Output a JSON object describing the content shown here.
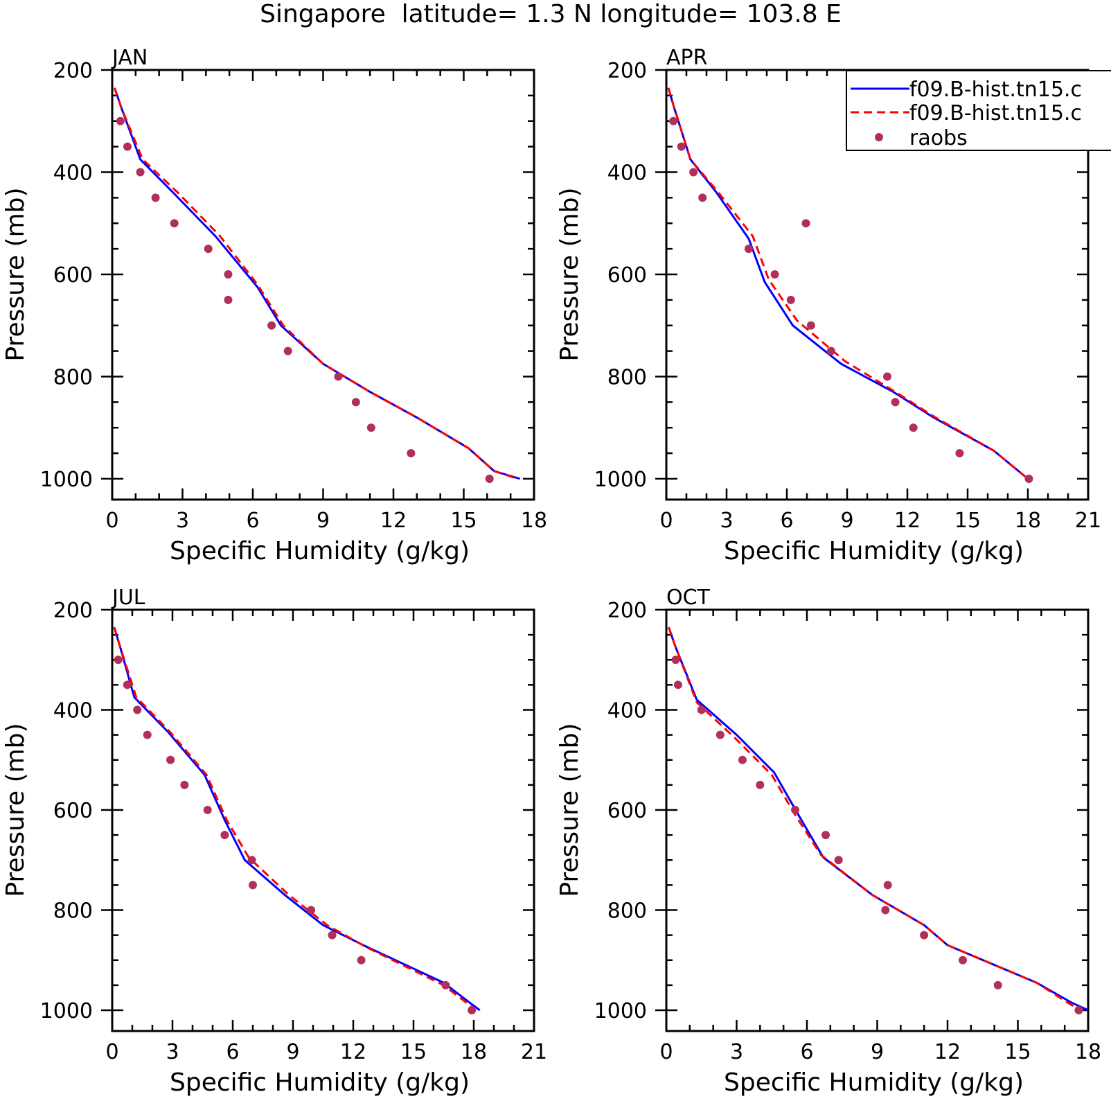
{
  "figure": {
    "title": "Singapore  latitude= 1.3 N longitude= 103.8 E"
  },
  "legend": {
    "entries": [
      {
        "label": "f09.B-hist.tn15.c",
        "style": "solid",
        "color": "#0000ff"
      },
      {
        "label": "f09.B-hist.tn15.c",
        "style": "dashed",
        "color": "#ff0000"
      },
      {
        "label": "raobs",
        "style": "dot",
        "color": "#b0305a"
      }
    ]
  },
  "colors": {
    "model_solid": "#0000ff",
    "model_dashed": "#ff0000",
    "raobs": "#b0305a"
  },
  "chart_data": [
    {
      "type": "line",
      "panel_label": "JAN",
      "xlabel": "Specific Humidity (g/kg)",
      "ylabel": "Pressure (mb)",
      "xlim": [
        0,
        18
      ],
      "ylim": [
        1000,
        200
      ],
      "x_ticks": [
        0,
        3,
        6,
        9,
        12,
        15,
        18
      ],
      "y_ticks": [
        200,
        400,
        600,
        800,
        1000
      ],
      "series": [
        {
          "style": "solid",
          "points": [
            [
              0.1,
              235
            ],
            [
              0.4,
              275
            ],
            [
              1.2,
              375
            ],
            [
              2.6,
              440
            ],
            [
              4.4,
              525
            ],
            [
              6.2,
              625
            ],
            [
              7.2,
              700
            ],
            [
              9.0,
              775
            ],
            [
              11.0,
              830
            ],
            [
              13.0,
              880
            ],
            [
              15.2,
              940
            ],
            [
              16.3,
              985
            ],
            [
              17.4,
              1000
            ]
          ]
        },
        {
          "style": "dashed",
          "points": [
            [
              0.1,
              235
            ],
            [
              0.4,
              275
            ],
            [
              1.3,
              375
            ],
            [
              2.8,
              440
            ],
            [
              4.6,
              525
            ],
            [
              6.2,
              620
            ],
            [
              7.3,
              700
            ],
            [
              9.0,
              775
            ],
            [
              11.0,
              830
            ],
            [
              13.0,
              880
            ],
            [
              15.2,
              940
            ],
            [
              16.3,
              985
            ],
            [
              17.3,
              1000
            ]
          ]
        },
        {
          "style": "dot",
          "points": [
            [
              0.35,
              300
            ],
            [
              0.65,
              350
            ],
            [
              1.2,
              400
            ],
            [
              1.85,
              450
            ],
            [
              2.65,
              500
            ],
            [
              4.1,
              550
            ],
            [
              4.95,
              600
            ],
            [
              4.95,
              650
            ],
            [
              6.8,
              700
            ],
            [
              7.5,
              750
            ],
            [
              9.65,
              800
            ],
            [
              10.4,
              850
            ],
            [
              11.05,
              900
            ],
            [
              12.75,
              950
            ],
            [
              16.1,
              1000
            ]
          ]
        }
      ]
    },
    {
      "type": "line",
      "panel_label": "APR",
      "xlabel": "Specific Humidity (g/kg)",
      "ylabel": "Pressure (mb)",
      "xlim": [
        0,
        21
      ],
      "ylim": [
        1000,
        200
      ],
      "x_ticks": [
        0,
        3,
        6,
        9,
        12,
        15,
        18,
        21
      ],
      "y_ticks": [
        200,
        400,
        600,
        800,
        1000
      ],
      "series": [
        {
          "style": "solid",
          "points": [
            [
              0.1,
              235
            ],
            [
              0.4,
              275
            ],
            [
              1.2,
              375
            ],
            [
              2.5,
              440
            ],
            [
              4.1,
              530
            ],
            [
              4.9,
              615
            ],
            [
              6.3,
              700
            ],
            [
              8.7,
              775
            ],
            [
              11.3,
              830
            ],
            [
              13.3,
              880
            ],
            [
              16.3,
              945
            ],
            [
              18.0,
              1000
            ]
          ]
        },
        {
          "style": "dashed",
          "points": [
            [
              0.1,
              235
            ],
            [
              0.4,
              275
            ],
            [
              1.2,
              375
            ],
            [
              2.6,
              440
            ],
            [
              4.3,
              525
            ],
            [
              5.1,
              610
            ],
            [
              6.5,
              690
            ],
            [
              8.9,
              770
            ],
            [
              11.4,
              830
            ],
            [
              13.4,
              880
            ],
            [
              16.3,
              945
            ],
            [
              18.0,
              1000
            ]
          ]
        },
        {
          "style": "dot",
          "points": [
            [
              0.35,
              300
            ],
            [
              0.75,
              350
            ],
            [
              1.35,
              400
            ],
            [
              1.8,
              450
            ],
            [
              6.95,
              500
            ],
            [
              4.1,
              550
            ],
            [
              5.4,
              600
            ],
            [
              6.2,
              650
            ],
            [
              7.2,
              700
            ],
            [
              8.2,
              750
            ],
            [
              11.0,
              800
            ],
            [
              11.4,
              850
            ],
            [
              12.3,
              900
            ],
            [
              14.6,
              950
            ],
            [
              18.05,
              1000
            ]
          ]
        }
      ]
    },
    {
      "type": "line",
      "panel_label": "JUL",
      "xlabel": "Specific Humidity (g/kg)",
      "ylabel": "Pressure (mb)",
      "xlim": [
        0,
        21
      ],
      "ylim": [
        1000,
        200
      ],
      "x_ticks": [
        0,
        3,
        6,
        9,
        12,
        15,
        18,
        21
      ],
      "y_ticks": [
        200,
        400,
        600,
        800,
        1000
      ],
      "series": [
        {
          "style": "solid",
          "points": [
            [
              0.1,
              235
            ],
            [
              0.4,
              275
            ],
            [
              1.1,
              375
            ],
            [
              2.8,
              445
            ],
            [
              4.6,
              530
            ],
            [
              5.6,
              620
            ],
            [
              6.6,
              700
            ],
            [
              8.6,
              770
            ],
            [
              10.5,
              830
            ],
            [
              12.5,
              870
            ],
            [
              16.5,
              945
            ],
            [
              17.8,
              985
            ],
            [
              18.3,
              1000
            ]
          ]
        },
        {
          "style": "dashed",
          "points": [
            [
              0.1,
              235
            ],
            [
              0.4,
              275
            ],
            [
              1.2,
              375
            ],
            [
              2.9,
              445
            ],
            [
              4.7,
              530
            ],
            [
              5.7,
              620
            ],
            [
              6.8,
              695
            ],
            [
              8.8,
              770
            ],
            [
              10.7,
              830
            ],
            [
              12.7,
              875
            ],
            [
              16.5,
              950
            ],
            [
              17.8,
              990
            ],
            [
              18.0,
              1000
            ]
          ]
        },
        {
          "style": "dot",
          "points": [
            [
              0.3,
              300
            ],
            [
              0.75,
              350
            ],
            [
              1.25,
              400
            ],
            [
              1.75,
              450
            ],
            [
              2.9,
              500
            ],
            [
              3.6,
              550
            ],
            [
              4.75,
              600
            ],
            [
              5.6,
              650
            ],
            [
              6.95,
              700
            ],
            [
              7.0,
              750
            ],
            [
              9.9,
              800
            ],
            [
              10.95,
              850
            ],
            [
              12.4,
              900
            ],
            [
              16.6,
              950
            ],
            [
              17.9,
              1000
            ]
          ]
        }
      ]
    },
    {
      "type": "line",
      "panel_label": "OCT",
      "xlabel": "Specific Humidity (g/kg)",
      "ylabel": "Pressure (mb)",
      "xlim": [
        0,
        18
      ],
      "ylim": [
        1000,
        200
      ],
      "x_ticks": [
        0,
        3,
        6,
        9,
        12,
        15,
        18
      ],
      "y_ticks": [
        200,
        400,
        600,
        800,
        1000
      ],
      "series": [
        {
          "style": "solid",
          "points": [
            [
              0.1,
              235
            ],
            [
              0.4,
              275
            ],
            [
              1.3,
              380
            ],
            [
              3.0,
              450
            ],
            [
              4.6,
              525
            ],
            [
              5.7,
              615
            ],
            [
              6.7,
              695
            ],
            [
              8.8,
              770
            ],
            [
              11.0,
              830
            ],
            [
              12.0,
              870
            ],
            [
              15.8,
              945
            ],
            [
              17.3,
              985
            ],
            [
              18.0,
              1000
            ]
          ]
        },
        {
          "style": "dashed",
          "points": [
            [
              0.1,
              235
            ],
            [
              0.4,
              275
            ],
            [
              1.3,
              385
            ],
            [
              2.9,
              455
            ],
            [
              4.5,
              530
            ],
            [
              5.5,
              610
            ],
            [
              6.6,
              690
            ],
            [
              8.8,
              770
            ],
            [
              11.0,
              830
            ],
            [
              12.0,
              870
            ],
            [
              15.8,
              945
            ],
            [
              17.3,
              990
            ],
            [
              17.8,
              1000
            ]
          ]
        },
        {
          "style": "dot",
          "points": [
            [
              0.4,
              300
            ],
            [
              0.5,
              350
            ],
            [
              1.5,
              400
            ],
            [
              2.3,
              450
            ],
            [
              3.25,
              500
            ],
            [
              4.0,
              550
            ],
            [
              5.5,
              600
            ],
            [
              6.8,
              650
            ],
            [
              7.35,
              700
            ],
            [
              9.45,
              750
            ],
            [
              9.35,
              800
            ],
            [
              11.0,
              850
            ],
            [
              12.65,
              900
            ],
            [
              14.15,
              950
            ],
            [
              17.6,
              1000
            ]
          ]
        }
      ]
    }
  ]
}
